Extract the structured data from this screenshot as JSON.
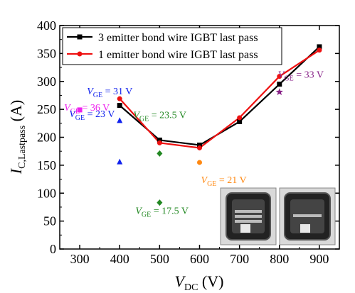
{
  "chart_data": {
    "type": "line",
    "xlabel": {
      "main": "V",
      "sub": "DC",
      "tail": " (V)"
    },
    "ylabel": {
      "main": "I",
      "sub": "C,Lastpass",
      "tail": " (A)"
    },
    "xlim": [
      250,
      950
    ],
    "ylim": [
      0,
      400
    ],
    "xticks": [
      300,
      400,
      500,
      600,
      700,
      800,
      900
    ],
    "yticks": [
      0,
      50,
      100,
      150,
      200,
      250,
      300,
      350,
      400
    ],
    "legend_position": "top-left",
    "series": [
      {
        "name": "3 emitter bond wire IGBT last pass",
        "color": "#000000",
        "marker": "square",
        "x": [
          400,
          500,
          600,
          700,
          800,
          900
        ],
        "y": [
          257,
          195,
          186,
          228,
          295,
          362
        ]
      },
      {
        "name": "1 emitter bond wire IGBT last pass",
        "color": "#ee1111",
        "marker": "circle",
        "x": [
          400,
          500,
          600,
          700,
          800,
          900
        ],
        "y": [
          269,
          190,
          181,
          235,
          309,
          356
        ]
      }
    ],
    "annotations": [
      {
        "x": 300,
        "y": 249,
        "marker": "square",
        "color": "#ee22ee",
        "label": {
          "v": "V",
          "sub": "GE",
          "rest": " = 36 V"
        }
      },
      {
        "x": 400,
        "y": 230,
        "marker": "triangle",
        "color": "#1122ee",
        "label": {
          "v": "V",
          "sub": "GE",
          "rest": " = 31 V"
        }
      },
      {
        "x": 400,
        "y": 156,
        "marker": "triangle",
        "color": "#1122ee",
        "label": {
          "v": "V",
          "sub": "GE",
          "rest": " = 23 V"
        }
      },
      {
        "x": 500,
        "y": 171,
        "marker": "diamond",
        "color": "#228822",
        "label": {
          "v": "V",
          "sub": "GE",
          "rest": " = 23.5 V"
        }
      },
      {
        "x": 500,
        "y": 83,
        "marker": "diamond",
        "color": "#228822",
        "label": {
          "v": "V",
          "sub": "GE",
          "rest": " = 17.5 V"
        }
      },
      {
        "x": 600,
        "y": 155,
        "marker": "circle",
        "color": "#ff8811",
        "label": {
          "v": "V",
          "sub": "GE",
          "rest": " = 21 V"
        }
      },
      {
        "x": 800,
        "y": 281,
        "marker": "star",
        "color": "#882288",
        "label": {
          "v": "V",
          "sub": "GE",
          "rest": " = 33 V"
        }
      }
    ]
  }
}
